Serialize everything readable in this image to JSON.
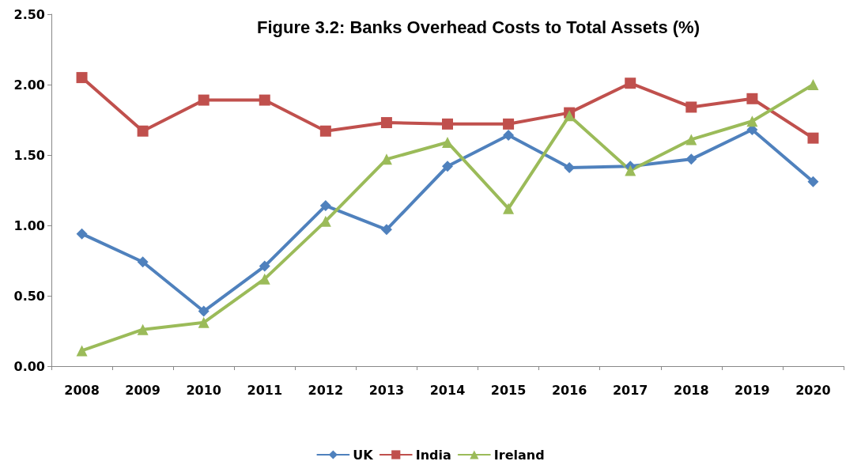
{
  "chart_data": {
    "type": "line",
    "title": "Figure 3.2: Banks Overhead Costs to Total Assets (%)",
    "categories": [
      "2008",
      "2009",
      "2010",
      "2011",
      "2012",
      "2013",
      "2014",
      "2015",
      "2016",
      "2017",
      "2018",
      "2019",
      "2020"
    ],
    "series": [
      {
        "name": "UK",
        "color": "#4f81bd",
        "marker": "diamond",
        "values": [
          0.94,
          0.74,
          0.39,
          0.71,
          1.14,
          0.97,
          1.42,
          1.64,
          1.41,
          1.42,
          1.47,
          1.68,
          1.31
        ]
      },
      {
        "name": "India",
        "color": "#c0504d",
        "marker": "square",
        "values": [
          2.05,
          1.67,
          1.89,
          1.89,
          1.67,
          1.73,
          1.72,
          1.72,
          1.8,
          2.01,
          1.84,
          1.9,
          1.62
        ]
      },
      {
        "name": "Ireland",
        "color": "#9bbb59",
        "marker": "triangle",
        "values": [
          0.11,
          0.26,
          0.31,
          0.62,
          1.03,
          1.47,
          1.59,
          1.12,
          1.78,
          1.39,
          1.61,
          1.74,
          2.0
        ]
      }
    ],
    "ylim": [
      0,
      2.5
    ],
    "yticks": [
      {
        "value": 0,
        "label": "0.00"
      },
      {
        "value": 0.5,
        "label": "0.50"
      },
      {
        "value": 1,
        "label": "1.00"
      },
      {
        "value": 1.5,
        "label": "1.50"
      },
      {
        "value": 2,
        "label": "2.00"
      },
      {
        "value": 2.5,
        "label": "2.50"
      }
    ],
    "grid": false,
    "legend": "bottom",
    "line_style": "solid"
  }
}
